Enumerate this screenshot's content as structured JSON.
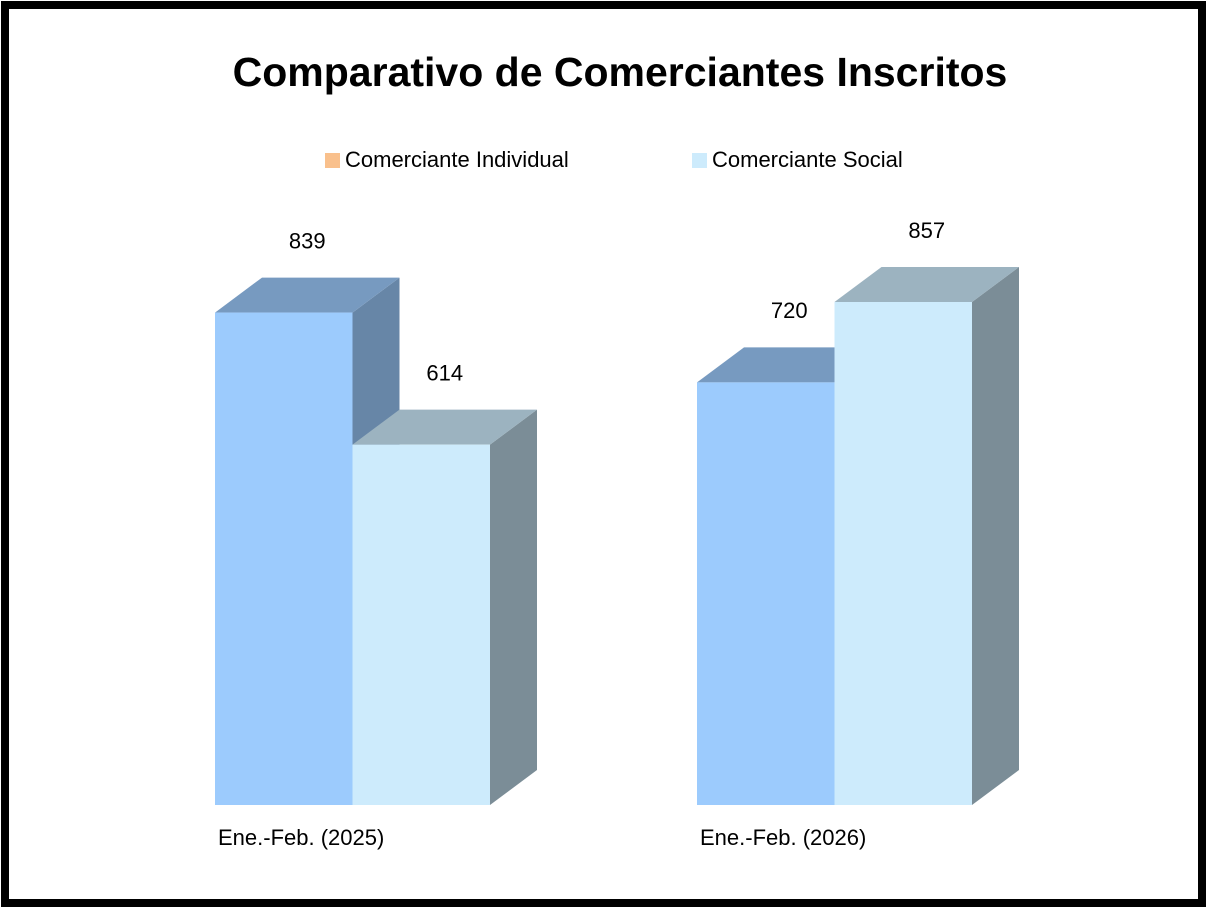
{
  "chart_data": {
    "type": "bar3d",
    "title": "Comparativo de Comerciantes Inscritos",
    "categories": [
      "Ene.-Feb. (2025)",
      "Ene.-Feb. (2026)"
    ],
    "series": [
      {
        "name": "Comerciante Individual",
        "color": "#9ccbfd",
        "legend_color": "#f9c08c",
        "values": [
          839,
          720
        ]
      },
      {
        "name": "Comerciante Social",
        "color": "#cdebfc",
        "legend_color": "#cdebfc",
        "values": [
          614,
          857
        ]
      }
    ]
  }
}
